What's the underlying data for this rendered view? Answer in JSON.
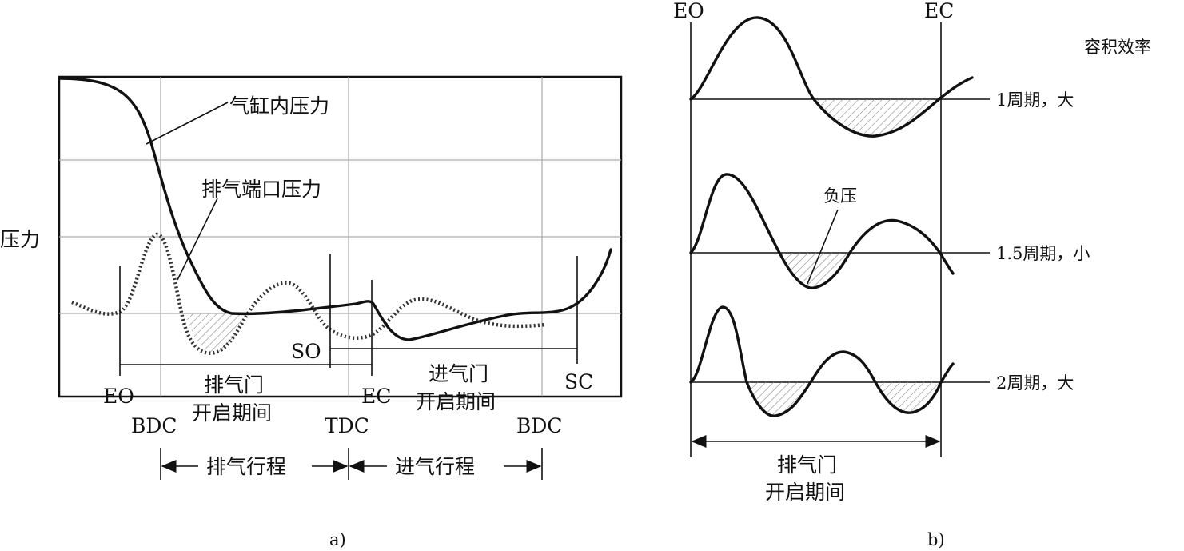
{
  "panel_a": {
    "caption": "a)",
    "y_axis_label": "压力",
    "curve_labels": {
      "cylinder_pressure": "气缸内压力",
      "port_pressure": "排气端口压力"
    },
    "events": {
      "eo": "EO",
      "ec": "EC",
      "so": "SO",
      "sc": "SC",
      "bdc_left": "BDC",
      "tdc": "TDC",
      "bdc_right": "BDC"
    },
    "exhaust_valve_period": [
      "排气门",
      "开启期间"
    ],
    "intake_valve_period": [
      "进气门",
      "开启期间"
    ],
    "strokes": {
      "exhaust": "排气行程",
      "intake": "进气行程"
    }
  },
  "panel_b": {
    "caption": "b)",
    "eo": "EO",
    "ec": "EC",
    "column_header": "容积效率",
    "rows": [
      {
        "label": "1周期，大"
      },
      {
        "label": "1.5周期，小"
      },
      {
        "label": "2周期，大"
      }
    ],
    "negative_pressure": "负压",
    "period_label": [
      "排气门",
      "开启期间"
    ]
  }
}
